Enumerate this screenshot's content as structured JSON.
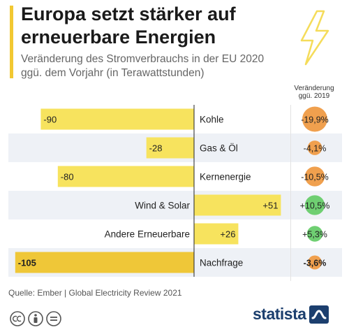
{
  "header": {
    "title": "Europa setzt stärker auf erneuerbare Energien",
    "subtitle": "Veränderung des Stromverbrauchs in der EU 2020 ggü. dem Vorjahr (in Terawattstunden)",
    "column_header_line1": "Veränderung",
    "column_header_line2": "ggü. 2019"
  },
  "chart_data": {
    "type": "bar",
    "orientation": "horizontal",
    "title": "Europa setzt stärker auf erneuerbare Energien",
    "subtitle": "Veränderung des Stromverbrauchs in der EU 2020 ggü. dem Vorjahr (in Terawattstunden)",
    "categories": [
      "Kohle",
      "Gas & Öl",
      "Kernenergie",
      "Wind & Solar",
      "Andere Erneuerbare",
      "Nachfrage"
    ],
    "values": [
      -90,
      -28,
      -80,
      51,
      26,
      -105
    ],
    "value_labels": [
      "-90",
      "-28",
      "-80",
      "+51",
      "+26",
      "-105"
    ],
    "percent_change": [
      -19.9,
      -4.1,
      -10.5,
      10.5,
      5.3,
      -3.6
    ],
    "percent_labels": [
      "-19,9%",
      "-4,1%",
      "-10,5%",
      "+10,5%",
      "+5,3%",
      "-3,6%"
    ],
    "highlight_last_row": true,
    "colors": {
      "bar": "#f7e35e",
      "bar_highlight": "#efc738",
      "negative_circle": "#f0a04e",
      "positive_circle": "#6fcf72",
      "row_shade": "#eef1f6"
    }
  },
  "footer": {
    "source": "Quelle: Ember | Global Electricity Review 2021",
    "logo_text": "statista"
  },
  "icons": [
    "lightning-bolt-icon",
    "cc-icon",
    "by-icon",
    "nd-icon",
    "statista-logo-icon"
  ]
}
